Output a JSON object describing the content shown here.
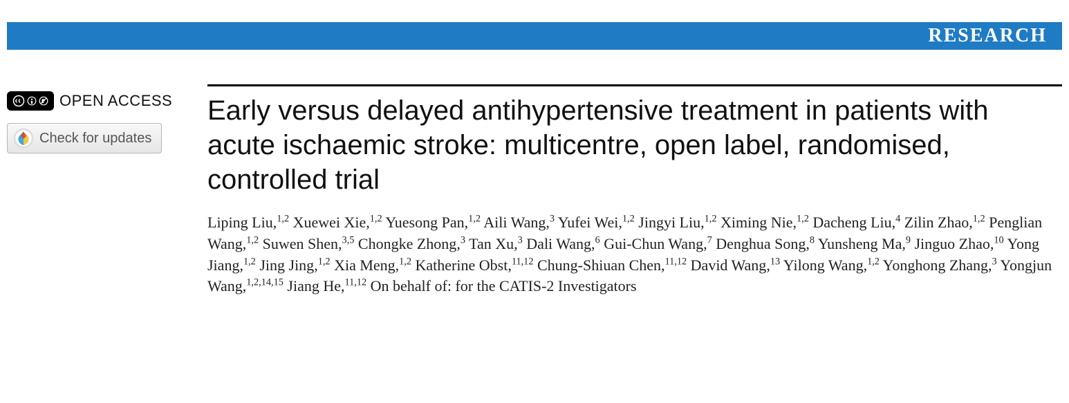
{
  "header": {
    "label": "RESEARCH",
    "background_color": "#1f7bc4",
    "text_color": "#ffffff"
  },
  "open_access": {
    "label": "OPEN ACCESS",
    "license": "CC BY-NC"
  },
  "check_updates": {
    "label": "Check for updates"
  },
  "title": "Early versus delayed antihypertensive treatment in patients with acute ischaemic stroke: multicentre, open label, randomised, controlled trial",
  "authors": [
    {
      "name": "Liping Liu",
      "affil": "1,2"
    },
    {
      "name": "Xuewei Xie",
      "affil": "1,2"
    },
    {
      "name": "Yuesong Pan",
      "affil": "1,2"
    },
    {
      "name": "Aili Wang",
      "affil": "3"
    },
    {
      "name": "Yufei Wei",
      "affil": "1,2"
    },
    {
      "name": "Jingyi Liu",
      "affil": "1,2"
    },
    {
      "name": "Ximing Nie",
      "affil": "1,2"
    },
    {
      "name": "Dacheng Liu",
      "affil": "4"
    },
    {
      "name": "Zilin Zhao",
      "affil": "1,2"
    },
    {
      "name": "Penglian Wang",
      "affil": "1,2"
    },
    {
      "name": "Suwen Shen",
      "affil": "3,5"
    },
    {
      "name": "Chongke Zhong",
      "affil": "3"
    },
    {
      "name": "Tan Xu",
      "affil": "3"
    },
    {
      "name": "Dali Wang",
      "affil": "6"
    },
    {
      "name": "Gui-Chun Wang",
      "affil": "7"
    },
    {
      "name": "Denghua Song",
      "affil": "8"
    },
    {
      "name": "Yunsheng Ma",
      "affil": "9"
    },
    {
      "name": "Jinguo Zhao",
      "affil": "10"
    },
    {
      "name": "Yong Jiang",
      "affil": "1,2"
    },
    {
      "name": "Jing Jing",
      "affil": "1,2"
    },
    {
      "name": "Xia Meng",
      "affil": "1,2"
    },
    {
      "name": "Katherine Obst",
      "affil": "11,12"
    },
    {
      "name": "Chung-Shiuan Chen",
      "affil": "11,12"
    },
    {
      "name": "David Wang",
      "affil": "13"
    },
    {
      "name": "Yilong Wang",
      "affil": "1,2"
    },
    {
      "name": "Yonghong Zhang",
      "affil": "3"
    },
    {
      "name": "Yongjun Wang",
      "affil": "1,2,14,15"
    },
    {
      "name": "Jiang He",
      "affil": "11,12"
    }
  ],
  "authors_suffix": "On behalf of: for the CATIS-2 Investigators",
  "colors": {
    "rule": "#000000",
    "title_color": "#111111",
    "author_color": "#222222"
  },
  "typography": {
    "title_fontsize": 40,
    "author_fontsize": 22,
    "header_fontsize": 28
  }
}
